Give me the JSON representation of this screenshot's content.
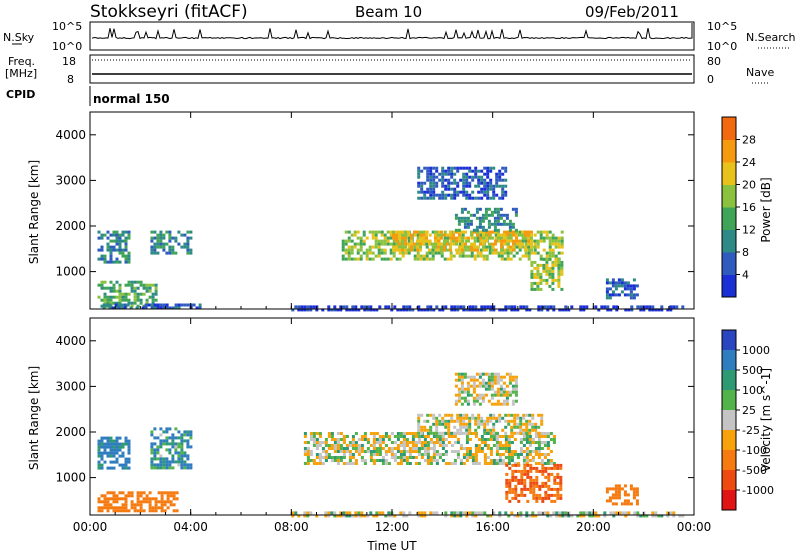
{
  "header": {
    "station": "Stokkseyri (fitACF)",
    "beam": "Beam 10",
    "date": "09/Feb/2011"
  },
  "left_labels": {
    "nsky": "N.Sky",
    "freq": "Freq.",
    "freq_unit": "[MHz]",
    "cpid": "CPID"
  },
  "right_labels": {
    "nsearch": "N.Search",
    "nave": "Nave"
  },
  "cpid_text": "normal 150",
  "noise_ticks": {
    "low": "10^0",
    "high": "10^5"
  },
  "freq_ticks": {
    "f18": "18",
    "f8": "8",
    "n80": "80",
    "n0": "0"
  },
  "colors": {
    "power_scale": [
      "#1a2fd6",
      "#2f5bbf",
      "#2e8a86",
      "#3fa457",
      "#8ac23f",
      "#e8c21a",
      "#f59a0f",
      "#f26a10",
      "#e02a12"
    ],
    "velocity_scale": [
      "#2a45c0",
      "#2f7dbf",
      "#2e9a73",
      "#52b34a",
      "#c4c4c4",
      "#f7a20a",
      "#f57a10",
      "#ee4a12",
      "#e01414"
    ],
    "ground_scatter": "#c4c4c4"
  },
  "chart_data": [
    {
      "type": "heatmap",
      "title": "",
      "xlabel": "Time UT",
      "ylabel": "Slant Range [km]",
      "colorbar_label": "Power [dB]",
      "colorbar_ticks": [
        "4",
        "8",
        "12",
        "16",
        "20",
        "24",
        "28"
      ],
      "x_ticks": [
        "00:00",
        "04:00",
        "08:00",
        "12:00",
        "16:00",
        "20:00",
        "00:00"
      ],
      "y_ticks": [
        "1000",
        "2000",
        "3000",
        "4000"
      ],
      "xlim_hours": [
        0,
        24
      ],
      "ylim_km": [
        180,
        4500
      ],
      "regions": [
        {
          "t0": 0.3,
          "t1": 2.6,
          "r0": 250,
          "r1": 800,
          "level": 16
        },
        {
          "t0": 0.3,
          "t1": 1.6,
          "r0": 1200,
          "r1": 1900,
          "level": 12
        },
        {
          "t0": 2.4,
          "t1": 4.0,
          "r0": 1400,
          "r1": 1900,
          "level": 12
        },
        {
          "t0": 0.5,
          "t1": 4.5,
          "r0": 180,
          "r1": 300,
          "level": 8
        },
        {
          "t0": 10.0,
          "t1": 18.8,
          "r0": 1300,
          "r1": 1900,
          "level": 20
        },
        {
          "t0": 12.0,
          "t1": 17.5,
          "r0": 1500,
          "r1": 1900,
          "level": 24
        },
        {
          "t0": 14.5,
          "t1": 17.0,
          "r0": 1900,
          "r1": 2400,
          "level": 12
        },
        {
          "t0": 13.0,
          "t1": 16.5,
          "r0": 2600,
          "r1": 3300,
          "level": 8
        },
        {
          "t0": 17.5,
          "t1": 18.7,
          "r0": 600,
          "r1": 1300,
          "level": 20
        },
        {
          "t0": 20.5,
          "t1": 21.8,
          "r0": 400,
          "r1": 850,
          "level": 8
        },
        {
          "t0": 8.0,
          "t1": 23.5,
          "r0": 180,
          "r1": 260,
          "level": 4
        }
      ]
    },
    {
      "type": "heatmap",
      "title": "",
      "xlabel": "Time UT",
      "ylabel": "Slant Range [km]",
      "colorbar_label": "Velocity [m s^-1]",
      "colorbar_ticks": [
        "1000",
        "500",
        "100",
        "25",
        "-25",
        "-100",
        "-500",
        "-1000"
      ],
      "x_ticks": [
        "00:00",
        "04:00",
        "08:00",
        "12:00",
        "16:00",
        "20:00",
        "00:00"
      ],
      "y_ticks": [
        "1000",
        "2000",
        "3000",
        "4000"
      ],
      "xlim_hours": [
        0,
        24
      ],
      "ylim_km": [
        180,
        4500
      ],
      "regions": [
        {
          "t0": 0.3,
          "t1": 3.5,
          "r0": 250,
          "r1": 700,
          "velocity": -200
        },
        {
          "t0": 0.3,
          "t1": 1.6,
          "r0": 1200,
          "r1": 1900,
          "velocity": 150
        },
        {
          "t0": 2.4,
          "t1": 4.0,
          "r0": 1200,
          "r1": 2100,
          "velocity": 100
        },
        {
          "t0": 8.5,
          "t1": 18.5,
          "r0": 1300,
          "r1": 2000,
          "velocity": 0
        },
        {
          "t0": 13.0,
          "t1": 18.0,
          "r0": 2000,
          "r1": 2400,
          "velocity": 0
        },
        {
          "t0": 14.5,
          "t1": 17.0,
          "r0": 2600,
          "r1": 3300,
          "velocity": 0
        },
        {
          "t0": 16.5,
          "t1": 18.7,
          "r0": 500,
          "r1": 1300,
          "velocity": -500
        },
        {
          "t0": 20.5,
          "t1": 21.8,
          "r0": 400,
          "r1": 850,
          "velocity": -300
        },
        {
          "t0": 8.0,
          "t1": 23.5,
          "r0": 180,
          "r1": 260,
          "velocity": 0
        }
      ]
    }
  ]
}
